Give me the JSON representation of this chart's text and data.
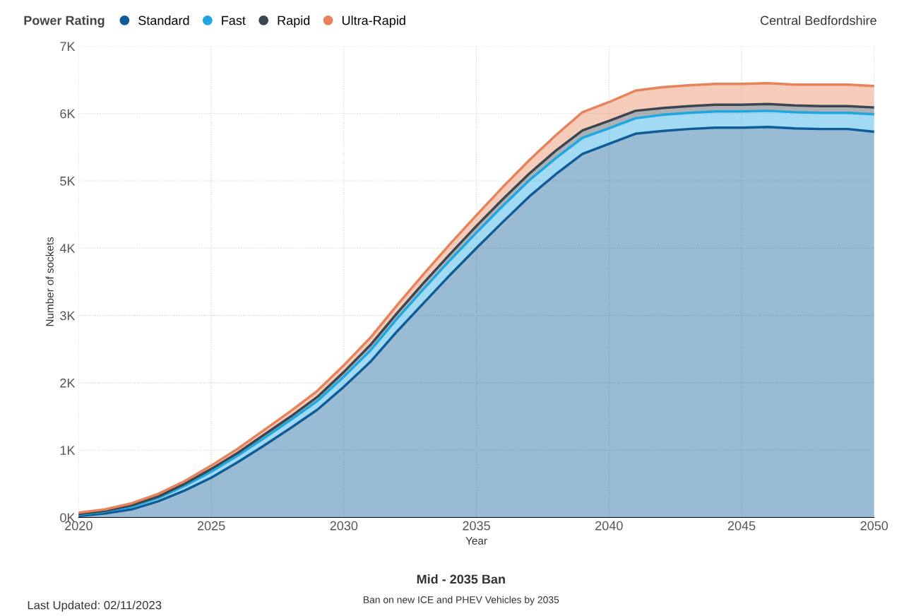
{
  "chart_data": {
    "type": "area",
    "stacked": true,
    "title": "Central Bedfordshire",
    "xlabel": "Year",
    "ylabel": "Number of sockets",
    "legend_title": "Power Rating",
    "legend": "top left",
    "grid": true,
    "line_style": "dotted",
    "x": [
      2020,
      2021,
      2022,
      2023,
      2024,
      2025,
      2026,
      2027,
      2028,
      2029,
      2030,
      2031,
      2032,
      2033,
      2034,
      2035,
      2036,
      2037,
      2038,
      2039,
      2040,
      2041,
      2042,
      2043,
      2044,
      2045,
      2046,
      2047,
      2048,
      2049,
      2050
    ],
    "series": [
      {
        "name": "Standard",
        "color": "#0f5c99",
        "values": [
          0.02,
          0.06,
          0.12,
          0.24,
          0.4,
          0.59,
          0.82,
          1.07,
          1.33,
          1.6,
          1.94,
          2.31,
          2.76,
          3.18,
          3.6,
          4.0,
          4.39,
          4.77,
          5.1,
          5.4,
          5.55,
          5.7,
          5.74,
          5.77,
          5.79,
          5.79,
          5.8,
          5.78,
          5.77,
          5.77,
          5.73
        ]
      },
      {
        "name": "Fast",
        "color": "#1ea7e1",
        "values": [
          0.02,
          0.03,
          0.04,
          0.05,
          0.07,
          0.09,
          0.1,
          0.11,
          0.12,
          0.13,
          0.15,
          0.17,
          0.19,
          0.21,
          0.22,
          0.23,
          0.24,
          0.24,
          0.24,
          0.24,
          0.23,
          0.23,
          0.24,
          0.24,
          0.24,
          0.24,
          0.24,
          0.24,
          0.24,
          0.24,
          0.26
        ]
      },
      {
        "name": "Rapid",
        "color": "#3c4650",
        "values": [
          0.01,
          0.01,
          0.02,
          0.02,
          0.03,
          0.04,
          0.04,
          0.05,
          0.05,
          0.06,
          0.07,
          0.08,
          0.08,
          0.09,
          0.09,
          0.1,
          0.1,
          0.1,
          0.11,
          0.11,
          0.11,
          0.11,
          0.1,
          0.1,
          0.1,
          0.1,
          0.1,
          0.1,
          0.1,
          0.1,
          0.1
        ]
      },
      {
        "name": "Ultra-Rapid",
        "color": "#e8825a",
        "values": [
          0.02,
          0.02,
          0.03,
          0.04,
          0.04,
          0.05,
          0.06,
          0.07,
          0.08,
          0.09,
          0.1,
          0.11,
          0.12,
          0.13,
          0.15,
          0.16,
          0.18,
          0.2,
          0.23,
          0.27,
          0.28,
          0.3,
          0.31,
          0.31,
          0.31,
          0.31,
          0.31,
          0.31,
          0.32,
          0.32,
          0.32
        ]
      }
    ],
    "xlim": [
      2020,
      2050
    ],
    "xticks": [
      2020,
      2025,
      2030,
      2035,
      2040,
      2045,
      2050
    ],
    "ylim": [
      0,
      7
    ],
    "yticks": [
      {
        "value": 0,
        "label": "0K"
      },
      {
        "value": 1,
        "label": "1K"
      },
      {
        "value": 2,
        "label": "2K"
      },
      {
        "value": 3,
        "label": "3K"
      },
      {
        "value": 4,
        "label": "4K"
      },
      {
        "value": 5,
        "label": "5K"
      },
      {
        "value": 6,
        "label": "6K"
      },
      {
        "value": 7,
        "label": "7K"
      }
    ],
    "annotations": [
      "Mid - 2035 Ban",
      "Ban on new ICE and PHEV Vehicles by 2035",
      "Last Updated: 02/11/2023"
    ]
  }
}
